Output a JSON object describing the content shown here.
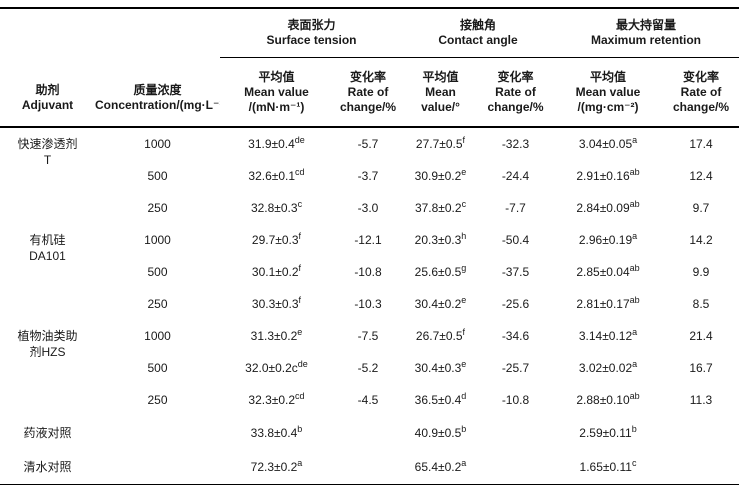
{
  "page": {
    "background": "#ffffff",
    "text_color": "#1a1a1a",
    "rule_color": "#000000"
  },
  "table": {
    "header": {
      "adjuvant": {
        "zh": "助剂",
        "en": "Adjuvant"
      },
      "concentration": {
        "zh": "质量浓度",
        "en": "Concentration/(mg·L⁻¹)"
      },
      "groups": [
        {
          "zh": "表面张力",
          "en": "Surface tension"
        },
        {
          "zh": "接触角",
          "en": "Contact angle"
        },
        {
          "zh": "最大持留量",
          "en": "Maximum retention"
        }
      ],
      "subcolumns": [
        {
          "lines": [
            "平均值",
            "Mean value",
            "/(mN·m⁻¹)"
          ]
        },
        {
          "lines": [
            "变化率",
            "Rate of",
            "change/%"
          ]
        },
        {
          "lines": [
            "平均值",
            "Mean",
            "value/°"
          ]
        },
        {
          "lines": [
            "变化率",
            "Rate of",
            "change/%"
          ]
        },
        {
          "lines": [
            "平均值",
            "Mean value",
            "/(mg·cm⁻²)"
          ]
        },
        {
          "lines": [
            "变化率",
            "Rate of",
            "change/%"
          ]
        }
      ]
    },
    "rows": [
      {
        "adjuvant": [
          "快速渗透剂",
          "T"
        ],
        "rowspan": 3,
        "concentration": "1000",
        "cells": [
          {
            "v": "31.9±0.4",
            "sup": "de"
          },
          {
            "v": "-5.7"
          },
          {
            "v": "27.7±0.5",
            "sup": "f"
          },
          {
            "v": "-32.3"
          },
          {
            "v": "3.04±0.05",
            "sup": "a"
          },
          {
            "v": "17.4"
          }
        ]
      },
      {
        "concentration": "500",
        "cells": [
          {
            "v": "32.6±0.1",
            "sup": "cd"
          },
          {
            "v": "-3.7"
          },
          {
            "v": "30.9±0.2",
            "sup": "e"
          },
          {
            "v": "-24.4"
          },
          {
            "v": "2.91±0.16",
            "sup": "ab"
          },
          {
            "v": "12.4"
          }
        ]
      },
      {
        "concentration": "250",
        "cells": [
          {
            "v": "32.8±0.3",
            "sup": "c"
          },
          {
            "v": "-3.0"
          },
          {
            "v": "37.8±0.2",
            "sup": "c"
          },
          {
            "v": "-7.7"
          },
          {
            "v": "2.84±0.09",
            "sup": "ab"
          },
          {
            "v": "9.7"
          }
        ]
      },
      {
        "adjuvant": [
          "有机硅",
          "DA101"
        ],
        "rowspan": 3,
        "concentration": "1000",
        "cells": [
          {
            "v": "29.7±0.3",
            "sup": "f"
          },
          {
            "v": "-12.1"
          },
          {
            "v": "20.3±0.3",
            "sup": "h"
          },
          {
            "v": "-50.4"
          },
          {
            "v": "2.96±0.19",
            "sup": "a"
          },
          {
            "v": "14.2"
          }
        ]
      },
      {
        "concentration": "500",
        "cells": [
          {
            "v": "30.1±0.2",
            "sup": "f"
          },
          {
            "v": "-10.8"
          },
          {
            "v": "25.6±0.5",
            "sup": "g"
          },
          {
            "v": "-37.5"
          },
          {
            "v": "2.85±0.04",
            "sup": "ab"
          },
          {
            "v": "9.9"
          }
        ]
      },
      {
        "concentration": "250",
        "cells": [
          {
            "v": "30.3±0.3",
            "sup": "f"
          },
          {
            "v": "-10.3"
          },
          {
            "v": "30.4±0.2",
            "sup": "e"
          },
          {
            "v": "-25.6"
          },
          {
            "v": "2.81±0.17",
            "sup": "ab"
          },
          {
            "v": "8.5"
          }
        ]
      },
      {
        "adjuvant": [
          "植物油类助",
          "剂HZS"
        ],
        "rowspan": 3,
        "concentration": "1000",
        "cells": [
          {
            "v": "31.3±0.2",
            "sup": "e"
          },
          {
            "v": "-7.5"
          },
          {
            "v": "26.7±0.5",
            "sup": "f"
          },
          {
            "v": "-34.6"
          },
          {
            "v": "3.14±0.12",
            "sup": "a"
          },
          {
            "v": "21.4"
          }
        ]
      },
      {
        "concentration": "500",
        "cells": [
          {
            "v": "32.0±0.2c",
            "sup": "de"
          },
          {
            "v": "-5.2"
          },
          {
            "v": "30.4±0.3",
            "sup": "e"
          },
          {
            "v": "-25.7"
          },
          {
            "v": "3.02±0.02",
            "sup": "a"
          },
          {
            "v": "16.7"
          }
        ]
      },
      {
        "concentration": "250",
        "cells": [
          {
            "v": "32.3±0.2",
            "sup": "cd"
          },
          {
            "v": "-4.5"
          },
          {
            "v": "36.5±0.4",
            "sup": "d"
          },
          {
            "v": "-10.8"
          },
          {
            "v": "2.88±0.10",
            "sup": "ab"
          },
          {
            "v": "11.3"
          }
        ]
      },
      {
        "adjuvant": [
          "药液对照"
        ],
        "rowspan": 1,
        "control": true,
        "concentration": "",
        "cells": [
          {
            "v": "33.8±0.4",
            "sup": "b"
          },
          {
            "v": ""
          },
          {
            "v": "40.9±0.5",
            "sup": "b"
          },
          {
            "v": ""
          },
          {
            "v": "2.59±0.11",
            "sup": "b"
          },
          {
            "v": ""
          }
        ]
      },
      {
        "adjuvant": [
          "清水对照"
        ],
        "rowspan": 1,
        "control": true,
        "concentration": "",
        "cells": [
          {
            "v": "72.3±0.2",
            "sup": "a"
          },
          {
            "v": ""
          },
          {
            "v": "65.4±0.2",
            "sup": "a"
          },
          {
            "v": ""
          },
          {
            "v": "1.65±0.11",
            "sup": "c"
          },
          {
            "v": ""
          }
        ]
      }
    ]
  }
}
